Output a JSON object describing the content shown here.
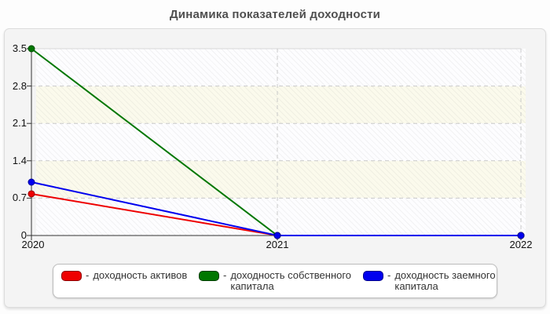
{
  "title": "Динамика показателей доходности",
  "colors": {
    "page_bg": "#fdfdfd",
    "card_bg": "#f4f4f4",
    "band_white": "#fdfdff",
    "band_cream": "#fbfaec",
    "grid": "#c9c9c9",
    "axis": "#333333",
    "title_text": "#4f4f4f"
  },
  "legend": {
    "items": [
      {
        "dash": "-",
        "label": "доходность активов",
        "color": "#ee0000",
        "border": "#8b0000"
      },
      {
        "dash": "-",
        "label": "доходность собственного капитала",
        "color": "#007700",
        "border": "#003d00"
      },
      {
        "dash": "-",
        "label": "доходность заемного капитала",
        "color": "#0000ee",
        "border": "#00008b"
      }
    ]
  },
  "chart_data": {
    "type": "line",
    "title": "Динамика показателей доходности",
    "x": [
      "2020",
      "2021",
      "2022"
    ],
    "series": [
      {
        "name": "доходность активов",
        "color": "#ee0000",
        "edge": "#990000",
        "values": [
          0.78,
          0,
          0
        ]
      },
      {
        "name": "доходность собственного капитала",
        "color": "#007700",
        "edge": "#004d00",
        "values": [
          3.5,
          0,
          0
        ]
      },
      {
        "name": "доходность заемного капитала",
        "color": "#0000ee",
        "edge": "#000099",
        "values": [
          1.0,
          0,
          0
        ]
      }
    ],
    "yticks": [
      0,
      0.7,
      1.4,
      2.1,
      2.8,
      3.5
    ],
    "ytick_labels": [
      "0",
      "0.7",
      "1.4",
      "2.1",
      "2.8",
      "3.5"
    ],
    "ylim": [
      0,
      3.5
    ],
    "grid": "dashed",
    "legend_position": "bottom"
  }
}
